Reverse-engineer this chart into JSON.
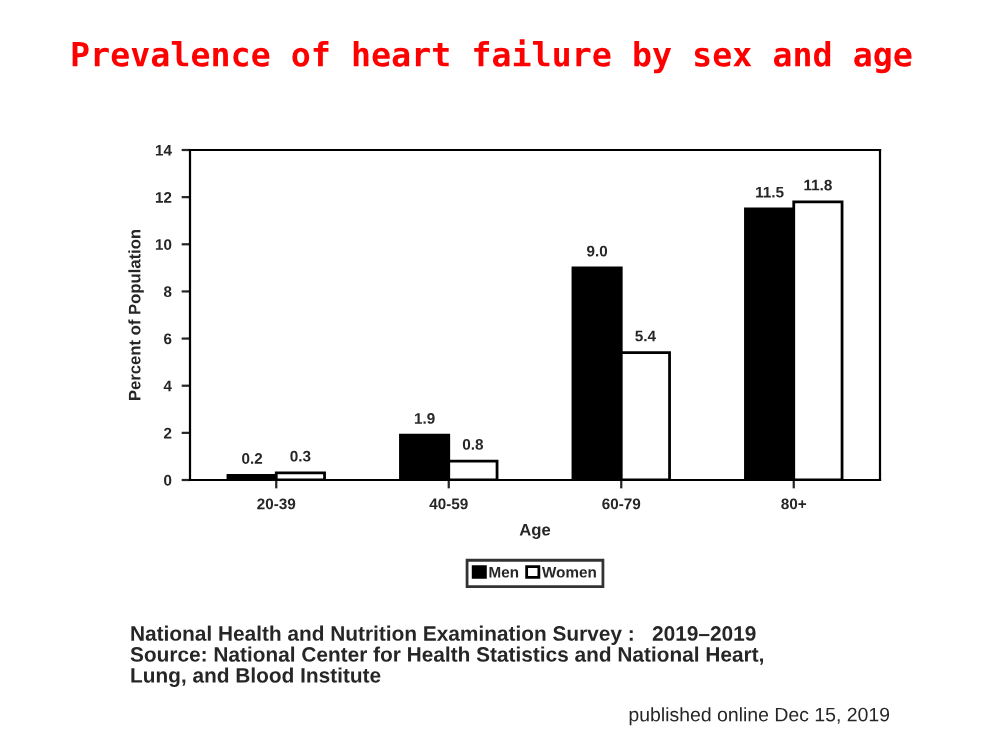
{
  "chart_data": {
    "type": "bar",
    "title": "Prevalence of heart failure by sex and age",
    "xlabel": "Age",
    "ylabel": "Percent of Population",
    "categories": [
      "20-39",
      "40-59",
      "60-79",
      "80+"
    ],
    "series": [
      {
        "name": "Men",
        "color": "#000000",
        "values": [
          0.2,
          1.9,
          9.0,
          11.5
        ],
        "value_labels": [
          "0.2",
          "1.9",
          "9.0",
          "11.5"
        ]
      },
      {
        "name": "Women",
        "color": "#ffffff",
        "values": [
          0.3,
          0.8,
          5.4,
          11.8
        ],
        "value_labels": [
          "0.3",
          "0.8",
          "5.4",
          "11.8"
        ]
      }
    ],
    "ylim": [
      0,
      14
    ],
    "yticks": [
      0,
      2,
      4,
      6,
      8,
      10,
      12,
      14
    ],
    "grid": false,
    "legend": "bottom",
    "annotations": [
      "National Health and Nutrition Examination Survey :   2019–2019\nSource: National Center for Health Statistics and National Heart,\nLung, and Blood Institute",
      "published online Dec 15, 2019"
    ]
  }
}
